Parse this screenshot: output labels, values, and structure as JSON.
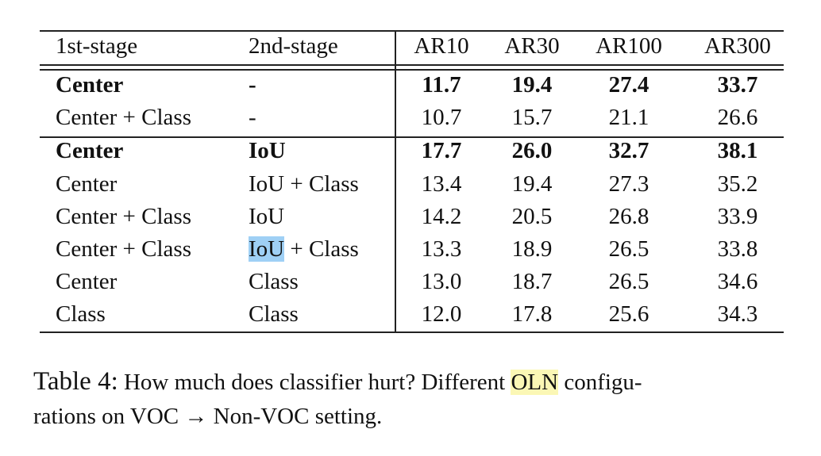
{
  "table": {
    "header": [
      "1st-stage",
      "2nd-stage",
      "AR10",
      "AR30",
      "AR100",
      "AR300"
    ],
    "groups": [
      [
        {
          "bold": true,
          "cells": [
            "Center",
            "-",
            "11.7",
            "19.4",
            "27.4",
            "33.7"
          ]
        },
        {
          "bold": false,
          "cells": [
            "Center + Class",
            "-",
            "10.7",
            "15.7",
            "21.1",
            "26.6"
          ]
        }
      ],
      [
        {
          "bold": true,
          "cells": [
            "Center",
            "IoU",
            "17.7",
            "26.0",
            "32.7",
            "38.1"
          ]
        },
        {
          "bold": false,
          "cells": [
            "Center",
            "IoU + Class",
            "13.4",
            "19.4",
            "27.3",
            "35.2"
          ]
        },
        {
          "bold": false,
          "cells": [
            "Center + Class",
            "IoU",
            "14.2",
            "20.5",
            "26.8",
            "33.9"
          ]
        },
        {
          "bold": false,
          "cells": [
            "Center + Class",
            [
              {
                "text": "IoU",
                "highlight": "#9fd0f5"
              },
              {
                "text": " + Class"
              }
            ],
            "13.3",
            "18.9",
            "26.5",
            "33.8"
          ]
        },
        {
          "bold": false,
          "cells": [
            "Center",
            "Class",
            "13.0",
            "18.7",
            "26.5",
            "34.6"
          ]
        },
        {
          "bold": false,
          "cells": [
            "Class",
            "Class",
            "12.0",
            "17.8",
            "25.6",
            "34.3"
          ]
        }
      ]
    ]
  },
  "caption": {
    "label": "Table 4:",
    "line1": [
      {
        "text": "How much does classifier hurt? Different "
      },
      {
        "text": "OLN",
        "highlight": "#fbf7b5"
      },
      {
        "text": " configu-"
      }
    ],
    "line2": "rations on VOC → Non-VOC setting."
  }
}
